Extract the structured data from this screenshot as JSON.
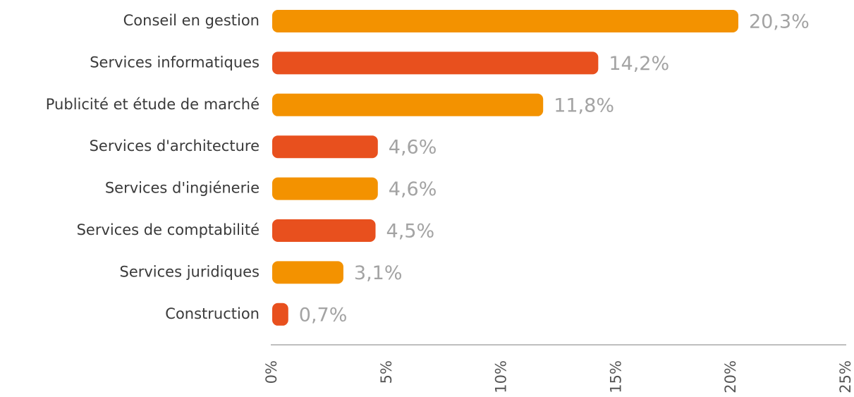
{
  "chart_data": {
    "type": "bar",
    "orientation": "horizontal",
    "categories": [
      "Conseil en gestion",
      "Services informatiques",
      "Publicité et étude de marché",
      "Services d'architecture",
      "Services d'ingiénerie",
      "Services de comptabilité",
      "Services juridiques",
      "Construction"
    ],
    "values": [
      20.3,
      14.2,
      11.8,
      4.6,
      4.6,
      4.5,
      3.1,
      0.7
    ],
    "value_labels": [
      "20,3%",
      "14,2%",
      "11,8%",
      "4,6%",
      "4,6%",
      "4,5%",
      "3,1%",
      "0,7%"
    ],
    "colors": [
      "#f39200",
      "#e8501e",
      "#f39200",
      "#e8501e",
      "#f39200",
      "#e8501e",
      "#f39200",
      "#e8501e"
    ],
    "xlim": [
      0,
      25
    ],
    "xticks": [
      {
        "value": 0,
        "label": "0%"
      },
      {
        "value": 5,
        "label": "5%"
      },
      {
        "value": 10,
        "label": "10%"
      },
      {
        "value": 15,
        "label": "15%"
      },
      {
        "value": 20,
        "label": "20%"
      },
      {
        "value": 25,
        "label": "25%"
      }
    ],
    "grid": false
  }
}
